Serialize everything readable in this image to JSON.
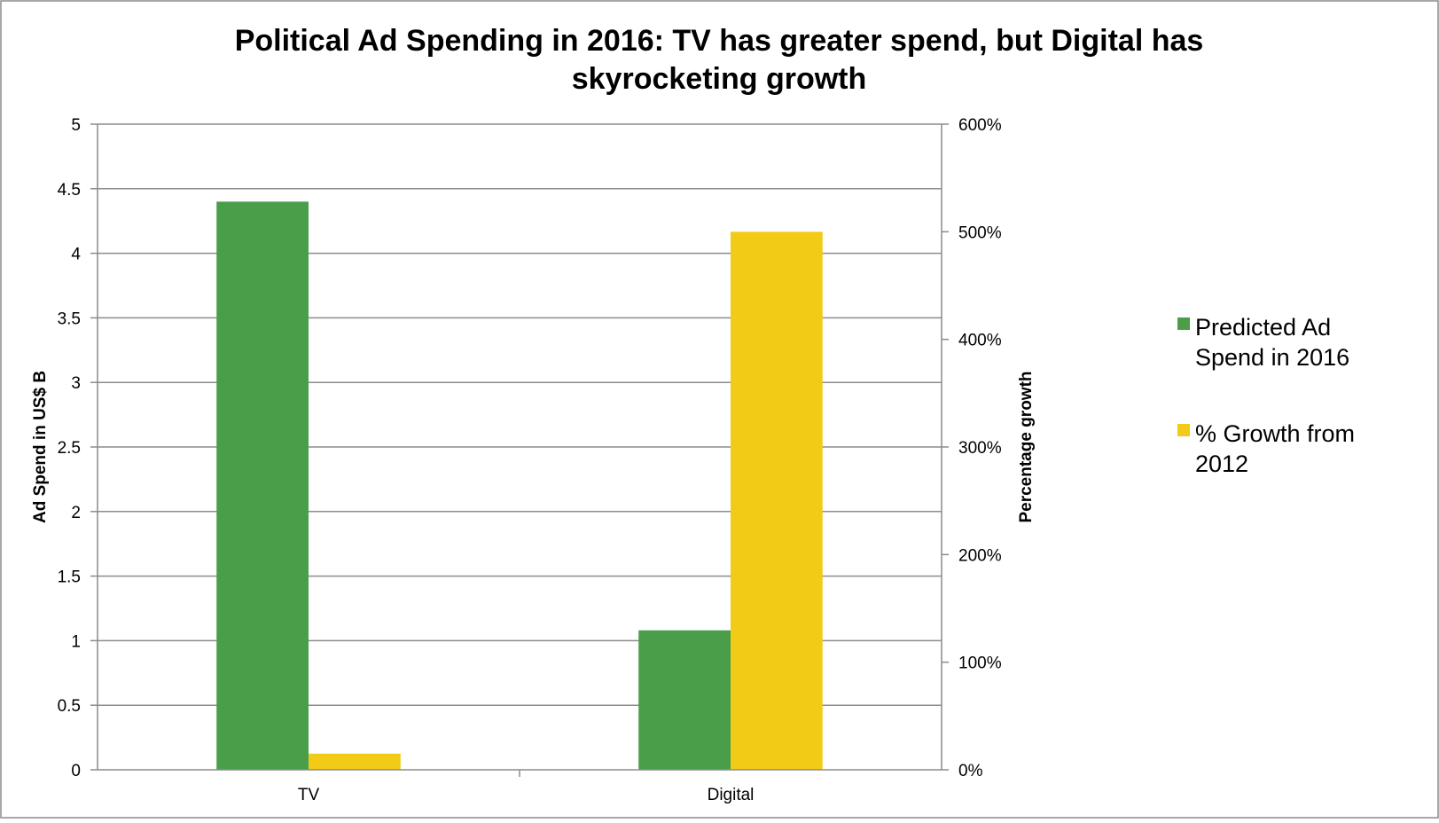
{
  "chart_data": {
    "type": "bar",
    "title_lines": [
      "Political Ad Spending in 2016: TV has greater spend, but Digital has",
      "skyrocketing growth"
    ],
    "categories": [
      "TV",
      "Digital"
    ],
    "y_axis_left": {
      "label": "Ad Spend in US$ B",
      "range": [
        0,
        5
      ],
      "ticks": [
        "0",
        "0.5",
        "1",
        "1.5",
        "2",
        "2.5",
        "3",
        "3.5",
        "4",
        "4.5",
        "5"
      ]
    },
    "y_axis_right": {
      "label": "Percentage growth",
      "range": [
        0,
        600
      ],
      "unit": "%",
      "ticks": [
        "0%",
        "100%",
        "200%",
        "300%",
        "400%",
        "500%",
        "600%"
      ]
    },
    "series": [
      {
        "name": "Predicted Ad Spend in 2016",
        "legend_lines": [
          "Predicted Ad",
          "Spend in 2016"
        ],
        "axis": "left",
        "color": "#4a9e4a",
        "values": [
          4.4,
          1.08
        ]
      },
      {
        "name": "% Growth from 2012",
        "legend_lines": [
          "% Growth from",
          "2012"
        ],
        "axis": "right",
        "color": "#f2cb16",
        "values": [
          15,
          500
        ]
      }
    ],
    "grid": true,
    "legend_position": "right"
  }
}
